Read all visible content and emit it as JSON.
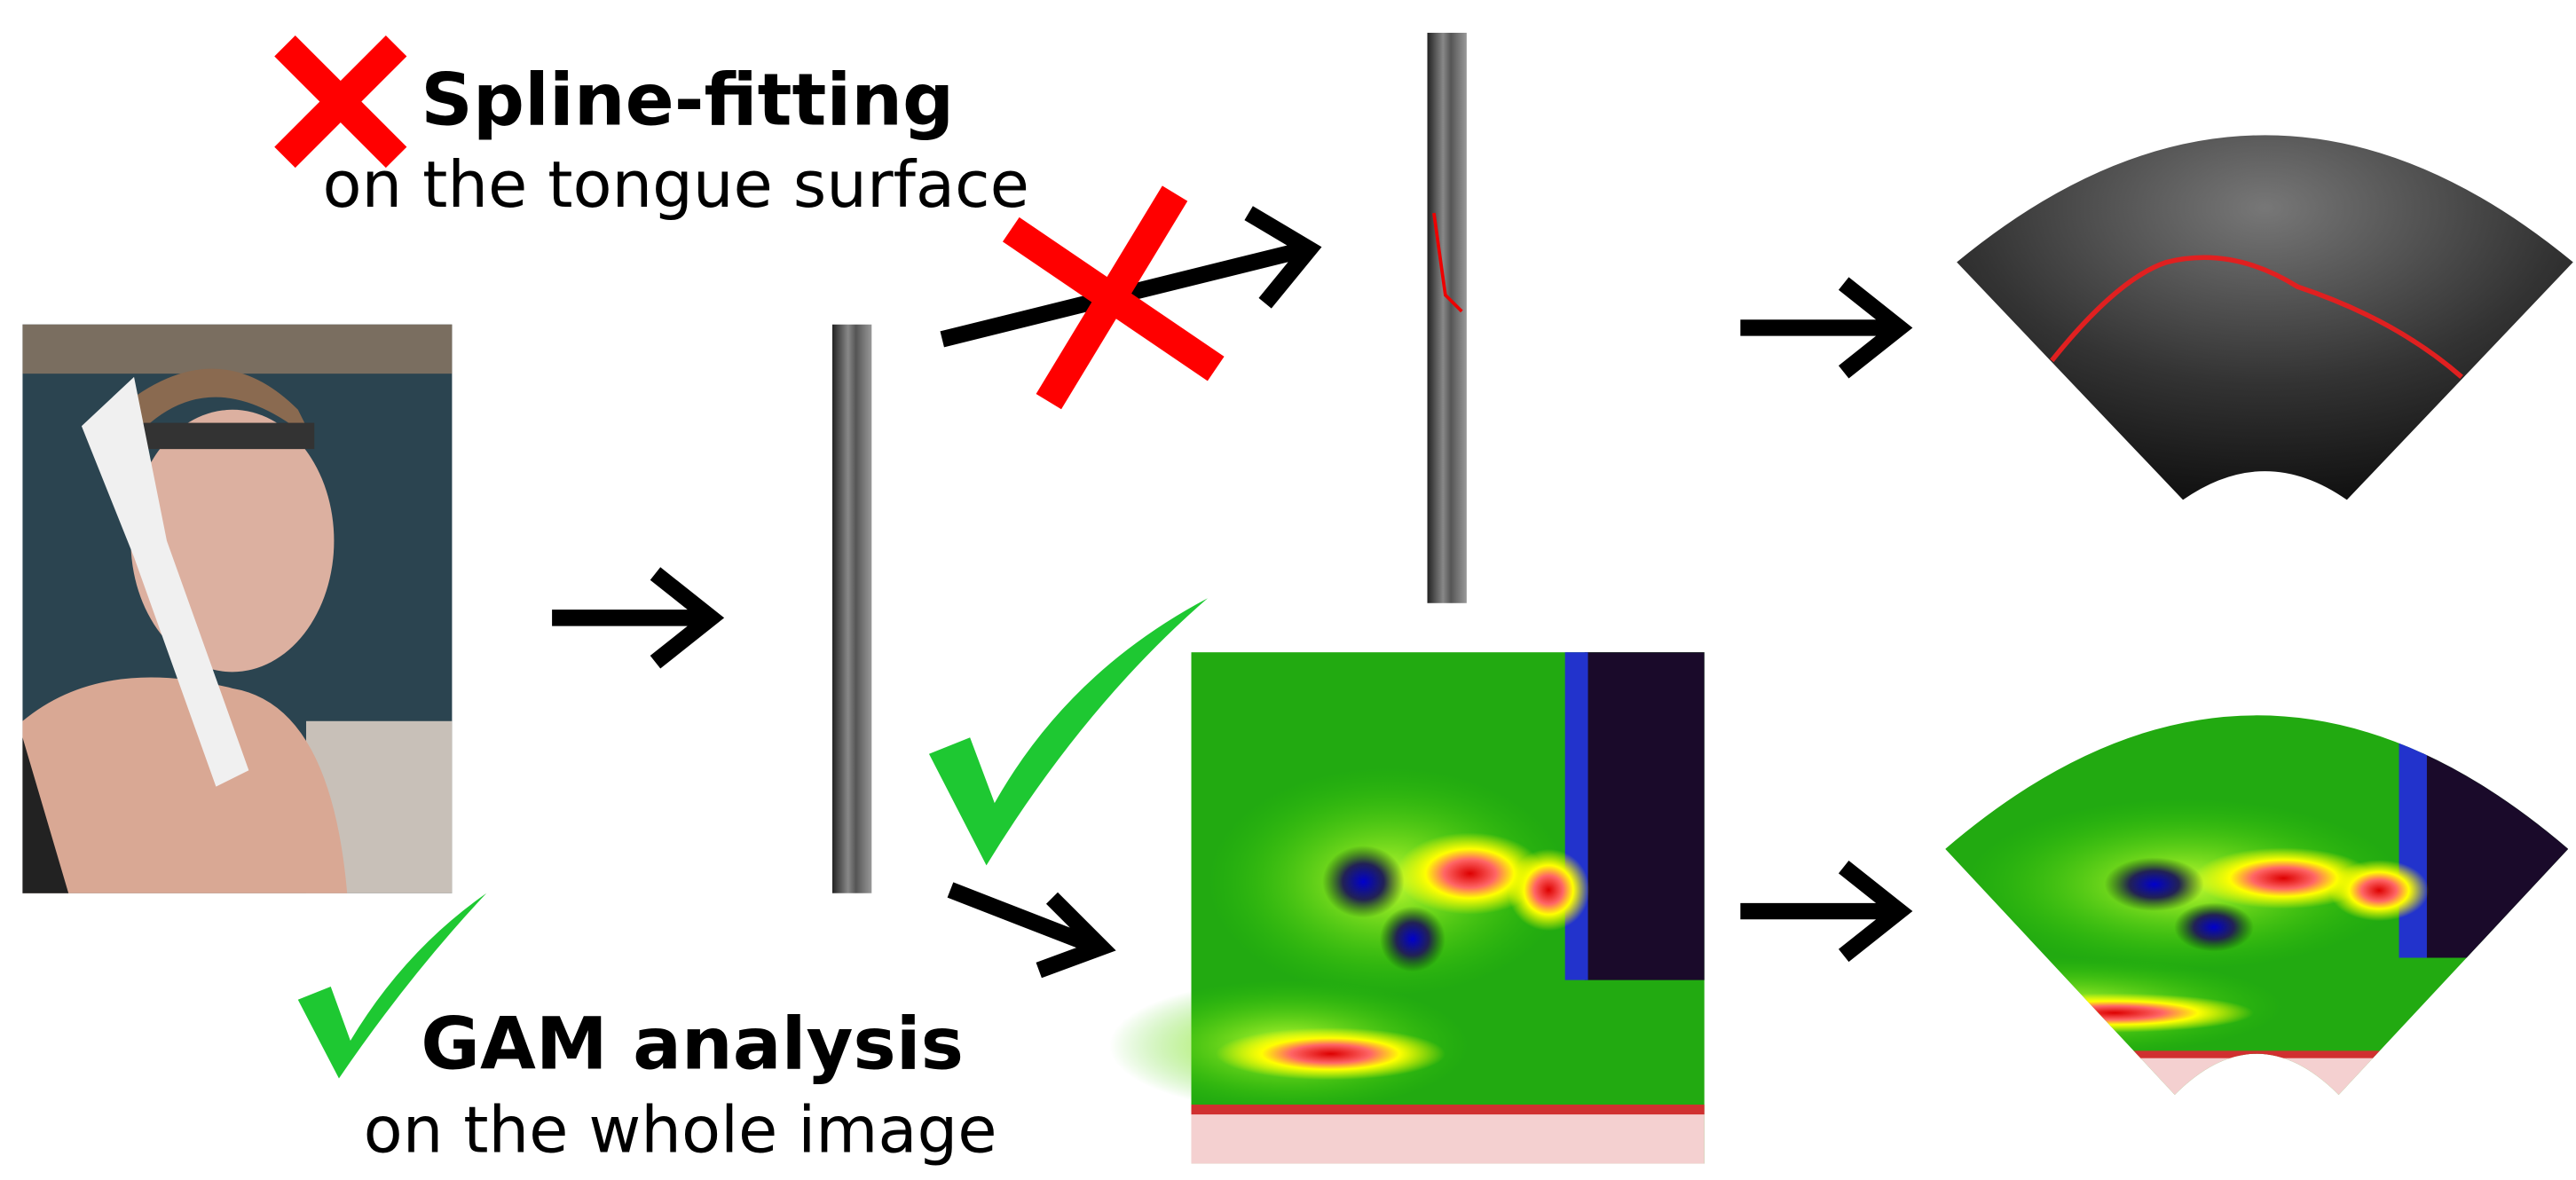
{
  "top_method": {
    "title": "Spline-fitting",
    "subtitle": "on the tongue surface"
  },
  "bottom_method": {
    "title": "GAM analysis",
    "subtitle": "on the whole image"
  }
}
